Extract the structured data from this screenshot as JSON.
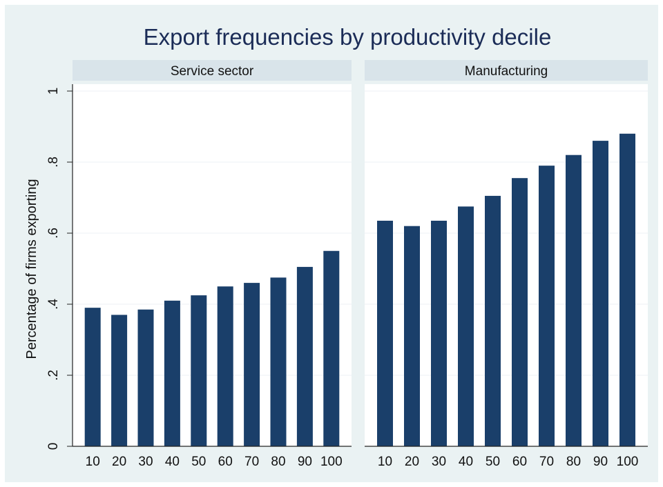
{
  "colors": {
    "frame_bg": "#eaf2f3",
    "plot_bg": "#ffffff",
    "strip_bg": "#d9e4ea",
    "bar": "#1a3f6a",
    "gridline": "#eef2f4",
    "title": "#1b2c57"
  },
  "chart_data": {
    "type": "bar",
    "title": "Export frequencies by productivity decile",
    "ylabel": "Percentage of firms exporting",
    "xlabel": "",
    "ylim": [
      0,
      1
    ],
    "yticks": [
      0,
      0.2,
      0.4,
      0.6,
      0.8,
      1
    ],
    "ytick_labels": [
      "0",
      ".2",
      ".4",
      ".6",
      ".8",
      "1"
    ],
    "grid": true,
    "categories": [
      "10",
      "20",
      "30",
      "40",
      "50",
      "60",
      "70",
      "80",
      "90",
      "100"
    ],
    "panels": [
      {
        "name": "Service sector",
        "values": [
          0.39,
          0.37,
          0.385,
          0.41,
          0.425,
          0.45,
          0.46,
          0.475,
          0.505,
          0.55
        ]
      },
      {
        "name": "Manufacturing",
        "values": [
          0.635,
          0.62,
          0.635,
          0.675,
          0.705,
          0.755,
          0.79,
          0.82,
          0.86,
          0.88
        ]
      }
    ]
  }
}
